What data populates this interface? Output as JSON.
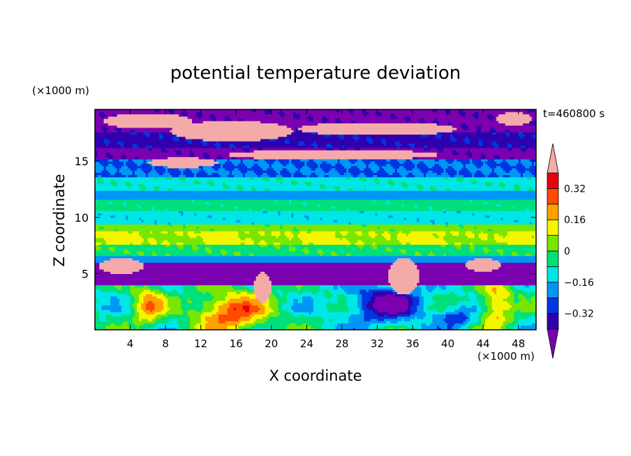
{
  "chart_data": {
    "type": "heatmap",
    "title": "potential temperature deviation",
    "xlabel": "X coordinate",
    "ylabel": "Z coordinate",
    "x_unit": "(×1000 m)",
    "y_unit": "(×1000 m)",
    "time_label": "t=460800 s",
    "xlim": [
      0,
      50
    ],
    "ylim": [
      0,
      19.6
    ],
    "x_ticks": [
      4,
      8,
      12,
      16,
      20,
      24,
      28,
      32,
      36,
      40,
      44,
      48
    ],
    "y_ticks": [
      5,
      10,
      15
    ],
    "x_tick_labels": [
      "4",
      "8",
      "12",
      "16",
      "20",
      "24",
      "28",
      "32",
      "36",
      "40",
      "44",
      "48"
    ],
    "y_tick_labels": [
      "5",
      "10",
      "15"
    ],
    "colorbar": {
      "levels": [
        -0.4,
        -0.32,
        -0.24,
        -0.16,
        -0.08,
        0,
        0.08,
        0.16,
        0.24,
        0.32,
        0.4
      ],
      "tick_values": [
        -0.32,
        -0.16,
        0,
        0.16,
        0.32
      ],
      "tick_labels": [
        "−0.32",
        "−0.16",
        "0",
        "0.16",
        "0.32"
      ],
      "colors": [
        "#7a00b0",
        "#2f00ae",
        "#0035e0",
        "#0096f5",
        "#00e6e6",
        "#00e07a",
        "#78e600",
        "#f5f500",
        "#ffa000",
        "#ff4a00",
        "#e80010",
        "#f5aaaa"
      ],
      "extend": "both"
    }
  }
}
